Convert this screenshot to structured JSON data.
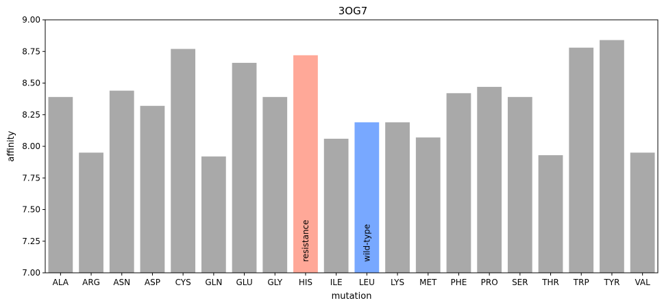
{
  "chart_data": {
    "type": "bar",
    "title": "3OG7",
    "xlabel": "mutation",
    "ylabel": "affinity",
    "ylim": [
      7.0,
      9.0
    ],
    "yticks": [
      "7.00",
      "7.25",
      "7.50",
      "7.75",
      "8.00",
      "8.25",
      "8.50",
      "8.75",
      "9.00"
    ],
    "grid": false,
    "categories": [
      "ALA",
      "ARG",
      "ASN",
      "ASP",
      "CYS",
      "GLN",
      "GLU",
      "GLY",
      "HIS",
      "ILE",
      "LEU",
      "LYS",
      "MET",
      "PHE",
      "PRO",
      "SER",
      "THR",
      "TRP",
      "TYR",
      "VAL"
    ],
    "values": [
      8.39,
      7.95,
      8.44,
      8.32,
      8.77,
      7.92,
      8.66,
      8.39,
      8.72,
      8.06,
      8.19,
      8.19,
      8.07,
      8.42,
      8.47,
      8.39,
      7.93,
      8.78,
      8.84,
      7.95
    ],
    "default_color": "#a9a9a9",
    "highlights": [
      {
        "category": "HIS",
        "label": "resistance",
        "color": "#ffa898"
      },
      {
        "category": "LEU",
        "label": "wild-type",
        "color": "#78a8ff"
      }
    ]
  }
}
